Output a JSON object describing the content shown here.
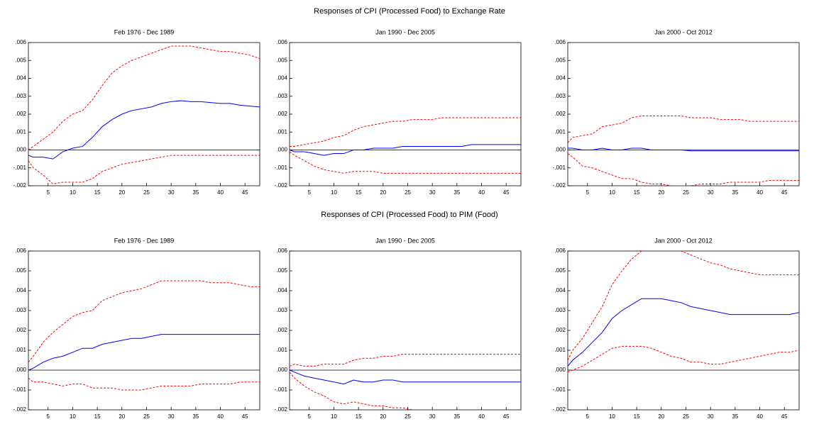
{
  "headings": [
    "Responses of CPI (Processed Food) to Exchange Rate",
    "Responses of CPI (Processed Food) to PIM (Food)"
  ],
  "chart_data": [
    {
      "type": "line",
      "title": "Feb 1976 - Dec 1989",
      "x": [
        1,
        2,
        4,
        6,
        8,
        10,
        12,
        14,
        16,
        18,
        20,
        22,
        24,
        26,
        28,
        30,
        32,
        34,
        36,
        38,
        40,
        42,
        44,
        46,
        48
      ],
      "xlim": [
        1,
        48
      ],
      "xticks": [
        5,
        10,
        15,
        20,
        25,
        30,
        35,
        40,
        45
      ],
      "ylim": [
        -0.002,
        0.006
      ],
      "yticks": [
        {
          "value": -0.002,
          "label": "-.002"
        },
        {
          "value": -0.001,
          "label": "-.001"
        },
        {
          "value": 0,
          "label": ".000"
        },
        {
          "value": 0.001,
          "label": ".001"
        },
        {
          "value": 0.002,
          "label": ".002"
        },
        {
          "value": 0.003,
          "label": ".003"
        },
        {
          "value": 0.004,
          "label": ".004"
        },
        {
          "value": 0.005,
          "label": ".005"
        },
        {
          "value": 0.006,
          "label": ".006"
        }
      ],
      "series": [
        {
          "color": "#0000ff",
          "style": "solid",
          "values": [
            -0.0003,
            -0.0004,
            -0.0004,
            -0.0005,
            -0.0001,
            0.0001,
            0.0002,
            0.0007,
            0.0013,
            0.0017,
            0.002,
            0.0022,
            0.0023,
            0.0024,
            0.0026,
            0.0027,
            0.00275,
            0.0027,
            0.0027,
            0.00265,
            0.0026,
            0.0026,
            0.0025,
            0.00245,
            0.0024
          ]
        },
        {
          "color": "#ff0000",
          "style": "dashed",
          "values": [
            0,
            0.0002,
            0.0006,
            0.001,
            0.0016,
            0.002,
            0.0022,
            0.0028,
            0.0036,
            0.0043,
            0.0047,
            0.005,
            0.0052,
            0.0054,
            0.0056,
            0.0058,
            0.0058,
            0.0058,
            0.0057,
            0.0056,
            0.0055,
            0.0055,
            0.0054,
            0.0053,
            0.0051
          ]
        },
        {
          "color": "#ff0000",
          "style": "dashed",
          "values": [
            -0.0006,
            -0.001,
            -0.0014,
            -0.0019,
            -0.0018,
            -0.0018,
            -0.0018,
            -0.0016,
            -0.0012,
            -0.001,
            -0.0008,
            -0.0007,
            -0.0006,
            -0.0005,
            -0.0004,
            -0.0003,
            -0.0003,
            -0.0003,
            -0.0003,
            -0.0003,
            -0.0003,
            -0.0003,
            -0.0003,
            -0.0003,
            -0.0003
          ]
        }
      ]
    },
    {
      "type": "line",
      "title": "Jan 1990 - Dec 2005",
      "x": [
        1,
        2,
        4,
        6,
        8,
        10,
        12,
        14,
        16,
        18,
        20,
        22,
        24,
        26,
        28,
        30,
        32,
        34,
        36,
        38,
        40,
        42,
        44,
        46,
        48
      ],
      "xlim": [
        1,
        48
      ],
      "xticks": [
        5,
        10,
        15,
        20,
        25,
        30,
        35,
        40,
        45
      ],
      "ylim": [
        -0.002,
        0.006
      ],
      "yticks": [
        {
          "value": -0.002,
          "label": "-.002"
        },
        {
          "value": -0.001,
          "label": "-.001"
        },
        {
          "value": 0,
          "label": ".000"
        },
        {
          "value": 0.001,
          "label": ".001"
        },
        {
          "value": 0.002,
          "label": ".002"
        },
        {
          "value": 0.003,
          "label": ".003"
        },
        {
          "value": 0.004,
          "label": ".004"
        },
        {
          "value": 0.005,
          "label": ".005"
        },
        {
          "value": 0.006,
          "label": ".006"
        }
      ],
      "series": [
        {
          "color": "#0000ff",
          "style": "solid",
          "values": [
            0,
            -0.0001,
            -0.0001,
            -0.0002,
            -0.0003,
            -0.0002,
            -0.0002,
            0,
            0,
            0.0001,
            0.0001,
            0.0001,
            0.0002,
            0.0002,
            0.0002,
            0.0002,
            0.0002,
            0.0002,
            0.0002,
            0.0003,
            0.0003,
            0.0003,
            0.0003,
            0.0003,
            0.0003
          ]
        },
        {
          "color": "#ff0000",
          "style": "dashed",
          "values": [
            0.0002,
            0.0002,
            0.0003,
            0.0004,
            0.0005,
            0.0007,
            0.0008,
            0.0011,
            0.0013,
            0.0014,
            0.0015,
            0.0016,
            0.0016,
            0.0017,
            0.0017,
            0.0017,
            0.0018,
            0.0018,
            0.0018,
            0.0018,
            0.0018,
            0.0018,
            0.0018,
            0.0018,
            0.0018
          ]
        },
        {
          "color": "#ff0000",
          "style": "dashed",
          "values": [
            -0.0001,
            -0.0003,
            -0.0006,
            -0.0009,
            -0.0011,
            -0.0012,
            -0.0013,
            -0.0012,
            -0.0012,
            -0.0012,
            -0.0013,
            -0.0013,
            -0.0013,
            -0.0013,
            -0.0013,
            -0.0013,
            -0.0013,
            -0.0013,
            -0.0013,
            -0.0013,
            -0.0013,
            -0.0013,
            -0.0013,
            -0.0013,
            -0.0013
          ]
        }
      ]
    },
    {
      "type": "line",
      "title": "Jan 2000 - Oct 2012",
      "x": [
        1,
        2,
        4,
        6,
        8,
        10,
        12,
        14,
        16,
        18,
        20,
        22,
        24,
        26,
        28,
        30,
        32,
        34,
        36,
        38,
        40,
        42,
        44,
        46,
        48
      ],
      "xlim": [
        1,
        48
      ],
      "xticks": [
        5,
        10,
        15,
        20,
        25,
        30,
        35,
        40,
        45
      ],
      "ylim": [
        -0.002,
        0.006
      ],
      "yticks": [
        {
          "value": -0.002,
          "label": "-.002"
        },
        {
          "value": -0.001,
          "label": "-.001"
        },
        {
          "value": 0,
          "label": ".000"
        },
        {
          "value": 0.001,
          "label": ".001"
        },
        {
          "value": 0.002,
          "label": ".002"
        },
        {
          "value": 0.003,
          "label": ".003"
        },
        {
          "value": 0.004,
          "label": ".004"
        },
        {
          "value": 0.005,
          "label": ".005"
        },
        {
          "value": 0.006,
          "label": ".006"
        }
      ],
      "series": [
        {
          "color": "#0000ff",
          "style": "solid",
          "values": [
            0.0001,
            0.0001,
            0,
            0,
            0.0001,
            0,
            0,
            0.0001,
            0.0001,
            0,
            0,
            0,
            0,
            -5e-05,
            -5e-05,
            -5e-05,
            -5e-05,
            -5e-05,
            -5e-05,
            -5e-05,
            -5e-05,
            -5e-05,
            -5e-05,
            -5e-05,
            -5e-05
          ]
        },
        {
          "color": "#ff0000",
          "style": "dashed",
          "values": [
            0.0004,
            0.0007,
            0.0008,
            0.0009,
            0.0013,
            0.0014,
            0.0015,
            0.0018,
            0.0019,
            0.0019,
            0.0019,
            0.0019,
            0.0019,
            0.0018,
            0.0018,
            0.0018,
            0.0017,
            0.0017,
            0.0017,
            0.0016,
            0.0016,
            0.0016,
            0.0016,
            0.0016,
            0.0016
          ]
        },
        {
          "color": "#ff0000",
          "style": "dashed",
          "values": [
            -0.0002,
            -0.0004,
            -0.0009,
            -0.001,
            -0.0012,
            -0.0014,
            -0.0016,
            -0.0016,
            -0.0018,
            -0.0019,
            -0.0019,
            -0.002,
            -0.002,
            -0.002,
            -0.0019,
            -0.0019,
            -0.0019,
            -0.0018,
            -0.0018,
            -0.0018,
            -0.0018,
            -0.0017,
            -0.0017,
            -0.0017,
            -0.0017
          ]
        }
      ]
    },
    {
      "type": "line",
      "title": "Feb 1976 - Dec 1989",
      "x": [
        1,
        2,
        4,
        6,
        8,
        10,
        12,
        14,
        16,
        18,
        20,
        22,
        24,
        26,
        28,
        30,
        32,
        34,
        36,
        38,
        40,
        42,
        44,
        46,
        48
      ],
      "xlim": [
        1,
        48
      ],
      "xticks": [
        5,
        10,
        15,
        20,
        25,
        30,
        35,
        40,
        45
      ],
      "ylim": [
        -0.002,
        0.006
      ],
      "yticks": [
        {
          "value": -0.002,
          "label": "-.002"
        },
        {
          "value": -0.001,
          "label": "-.001"
        },
        {
          "value": 0,
          "label": ".000"
        },
        {
          "value": 0.001,
          "label": ".001"
        },
        {
          "value": 0.002,
          "label": ".002"
        },
        {
          "value": 0.003,
          "label": ".003"
        },
        {
          "value": 0.004,
          "label": ".004"
        },
        {
          "value": 0.005,
          "label": ".005"
        },
        {
          "value": 0.006,
          "label": ".006"
        }
      ],
      "series": [
        {
          "color": "#0000ff",
          "style": "solid",
          "values": [
            0,
            0.0001,
            0.0004,
            0.0006,
            0.0007,
            0.0009,
            0.0011,
            0.0011,
            0.0013,
            0.0014,
            0.0015,
            0.0016,
            0.0016,
            0.0017,
            0.0018,
            0.0018,
            0.0018,
            0.0018,
            0.0018,
            0.0018,
            0.0018,
            0.0018,
            0.0018,
            0.0018,
            0.0018
          ]
        },
        {
          "color": "#ff0000",
          "style": "dashed",
          "values": [
            0.0004,
            0.0007,
            0.0014,
            0.0019,
            0.0023,
            0.0027,
            0.0029,
            0.003,
            0.0035,
            0.0037,
            0.0039,
            0.004,
            0.0041,
            0.0043,
            0.0045,
            0.0045,
            0.0045,
            0.0045,
            0.0045,
            0.0044,
            0.0044,
            0.0044,
            0.0043,
            0.0042,
            0.0042
          ]
        },
        {
          "color": "#ff0000",
          "style": "dashed",
          "values": [
            -0.0004,
            -0.0006,
            -0.0006,
            -0.0007,
            -0.0008,
            -0.0007,
            -0.0007,
            -0.0009,
            -0.0009,
            -0.0009,
            -0.001,
            -0.001,
            -0.001,
            -0.0009,
            -0.0008,
            -0.0008,
            -0.0008,
            -0.0008,
            -0.0007,
            -0.0007,
            -0.0007,
            -0.0007,
            -0.0006,
            -0.0006,
            -0.0006
          ]
        }
      ]
    },
    {
      "type": "line",
      "title": "Jan 1990 - Dec 2005",
      "x": [
        1,
        2,
        4,
        6,
        8,
        10,
        12,
        14,
        16,
        18,
        20,
        22,
        24,
        26,
        28,
        30,
        32,
        34,
        36,
        38,
        40,
        42,
        44,
        46,
        48
      ],
      "xlim": [
        1,
        48
      ],
      "xticks": [
        5,
        10,
        15,
        20,
        25,
        30,
        35,
        40,
        45
      ],
      "ylim": [
        -0.002,
        0.006
      ],
      "yticks": [
        {
          "value": -0.002,
          "label": "-.002"
        },
        {
          "value": -0.001,
          "label": "-.001"
        },
        {
          "value": 0,
          "label": ".000"
        },
        {
          "value": 0.001,
          "label": ".001"
        },
        {
          "value": 0.002,
          "label": ".002"
        },
        {
          "value": 0.003,
          "label": ".003"
        },
        {
          "value": 0.004,
          "label": ".004"
        },
        {
          "value": 0.005,
          "label": ".005"
        },
        {
          "value": 0.006,
          "label": ".006"
        }
      ],
      "series": [
        {
          "color": "#0000ff",
          "style": "solid",
          "values": [
            0,
            -0.0001,
            -0.0003,
            -0.0004,
            -0.0005,
            -0.0006,
            -0.0007,
            -0.0005,
            -0.0006,
            -0.0006,
            -0.0005,
            -0.0005,
            -0.0006,
            -0.0006,
            -0.0006,
            -0.0006,
            -0.0006,
            -0.0006,
            -0.0006,
            -0.0006,
            -0.0006,
            -0.0006,
            -0.0006,
            -0.0006,
            -0.0006
          ]
        },
        {
          "color": "#ff0000",
          "style": "dashed",
          "values": [
            0.0002,
            0.0003,
            0.0002,
            0.0002,
            0.0003,
            0.0003,
            0.0003,
            0.0005,
            0.0006,
            0.0006,
            0.0007,
            0.0007,
            0.0008,
            0.0008,
            0.0008,
            0.0008,
            0.0008,
            0.0008,
            0.0008,
            0.0008,
            0.0008,
            0.0008,
            0.0008,
            0.0008,
            0.0008
          ]
        },
        {
          "color": "#ff0000",
          "style": "dashed",
          "values": [
            -0.0001,
            -0.0004,
            -0.0008,
            -0.0011,
            -0.0013,
            -0.0016,
            -0.0017,
            -0.0016,
            -0.0017,
            -0.0018,
            -0.0018,
            -0.0019,
            -0.0019,
            -0.002,
            -0.002,
            -0.002,
            -0.0021,
            -0.0021,
            -0.0021,
            -0.0022,
            -0.0022,
            -0.0022,
            -0.0022,
            -0.0022,
            -0.0022
          ]
        }
      ]
    },
    {
      "type": "line",
      "title": "Jan 2000 - Oct 2012",
      "x": [
        1,
        2,
        4,
        6,
        8,
        10,
        12,
        14,
        16,
        18,
        20,
        22,
        24,
        26,
        28,
        30,
        32,
        34,
        36,
        38,
        40,
        42,
        44,
        46,
        48
      ],
      "xlim": [
        1,
        48
      ],
      "xticks": [
        5,
        10,
        15,
        20,
        25,
        30,
        35,
        40,
        45
      ],
      "ylim": [
        -0.002,
        0.006
      ],
      "yticks": [
        {
          "value": -0.002,
          "label": "-.002"
        },
        {
          "value": -0.001,
          "label": "-.001"
        },
        {
          "value": 0,
          "label": ".000"
        },
        {
          "value": 0.001,
          "label": ".001"
        },
        {
          "value": 0.002,
          "label": ".002"
        },
        {
          "value": 0.003,
          "label": ".003"
        },
        {
          "value": 0.004,
          "label": ".004"
        },
        {
          "value": 0.005,
          "label": ".005"
        },
        {
          "value": 0.006,
          "label": ".006"
        }
      ],
      "series": [
        {
          "color": "#0000ff",
          "style": "solid",
          "values": [
            0.0002,
            0.0005,
            0.0009,
            0.0014,
            0.0019,
            0.0026,
            0.003,
            0.0033,
            0.0036,
            0.0036,
            0.0036,
            0.0035,
            0.0034,
            0.0032,
            0.0031,
            0.003,
            0.0029,
            0.0028,
            0.0028,
            0.0028,
            0.0028,
            0.0028,
            0.0028,
            0.0028,
            0.0029
          ]
        },
        {
          "color": "#ff0000",
          "style": "dashed",
          "values": [
            0.0005,
            0.001,
            0.0016,
            0.0024,
            0.0032,
            0.0043,
            0.005,
            0.0056,
            0.006,
            0.0062,
            0.0063,
            0.0062,
            0.006,
            0.0058,
            0.0056,
            0.0054,
            0.0053,
            0.0051,
            0.005,
            0.0049,
            0.0048,
            0.0048,
            0.0048,
            0.0048,
            0.0048
          ]
        },
        {
          "color": "#ff0000",
          "style": "dashed",
          "values": [
            -0.0001,
            0,
            0.0002,
            0.0005,
            0.0008,
            0.0011,
            0.0012,
            0.0012,
            0.0012,
            0.0011,
            0.0009,
            0.0007,
            0.0006,
            0.0004,
            0.0004,
            0.0003,
            0.0003,
            0.0004,
            0.0005,
            0.0006,
            0.0007,
            0.0008,
            0.0009,
            0.0009,
            0.001
          ]
        }
      ]
    }
  ]
}
